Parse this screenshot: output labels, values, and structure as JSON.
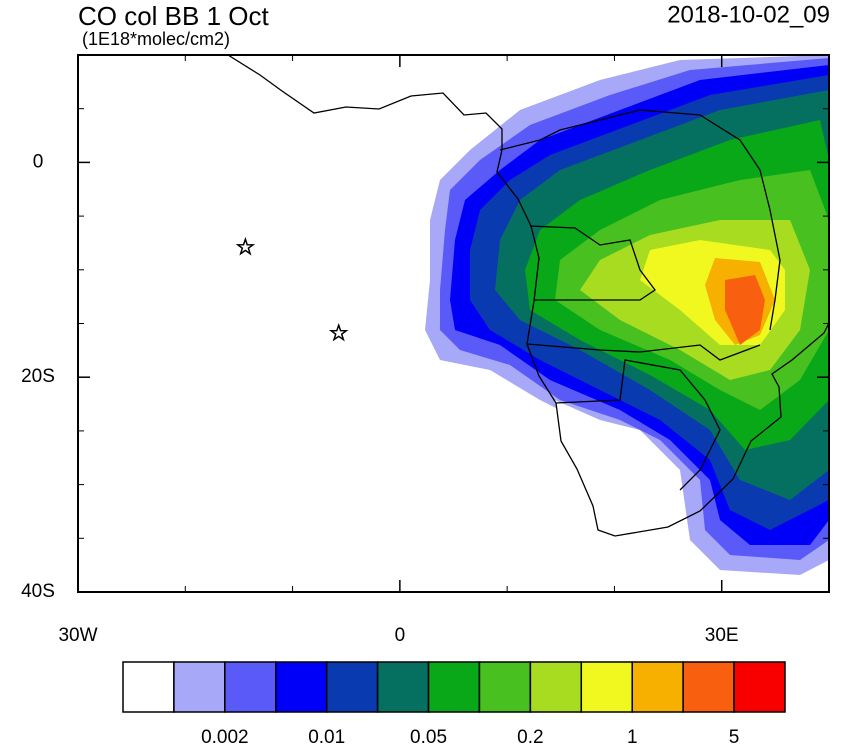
{
  "map": {
    "title": "CO col BB 1 Oct",
    "units": "(1E18*molec/cm2)",
    "timestamp": "2018-10-02_09",
    "lon_range": [
      -30,
      40
    ],
    "lat_range": [
      -40,
      10
    ],
    "lon_ticks": [
      {
        "value": -30,
        "label": "30W"
      },
      {
        "value": 0,
        "label": "0"
      },
      {
        "value": 30,
        "label": "30E"
      }
    ],
    "lon_minor_ticks": [
      -20,
      -10,
      10,
      20
    ],
    "lat_ticks": [
      {
        "value": 0,
        "label": "0"
      },
      {
        "value": -20,
        "label": "20S"
      },
      {
        "value": -40,
        "label": "40S"
      }
    ],
    "lat_minor_ticks": [
      5,
      -5,
      -10,
      -15,
      -25,
      -30,
      -35
    ],
    "stations": [
      {
        "lon": -14.4,
        "lat": -7.9
      },
      {
        "lon": -5.7,
        "lat": -15.9
      }
    ],
    "colorbar": {
      "colors": [
        "#ffffff",
        "#a8a8f8",
        "#5a5af8",
        "#0000f8",
        "#0a3ab0",
        "#067060",
        "#08a818",
        "#48c020",
        "#a8dc20",
        "#f0f820",
        "#f8b000",
        "#f86010",
        "#f80000"
      ],
      "labels": [
        0.002,
        0.01,
        0.05,
        0.2,
        1,
        5
      ]
    }
  }
}
